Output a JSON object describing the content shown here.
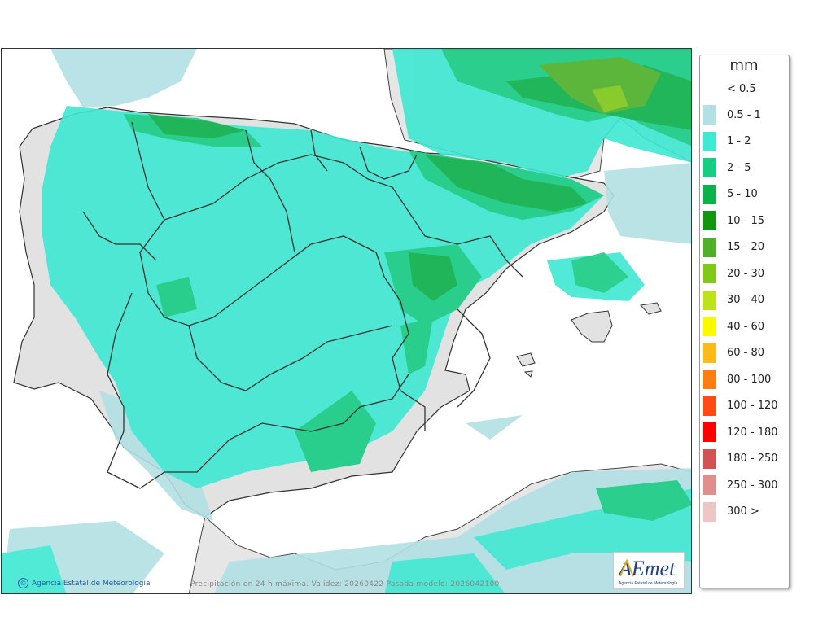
{
  "legend": {
    "unit": "mm",
    "below_min_label": "< 0.5",
    "classes": [
      {
        "label": "0.5 - 1",
        "color": "#b3e0e4"
      },
      {
        "label": "1 - 2",
        "color": "#3ee8d2"
      },
      {
        "label": "2 - 5",
        "color": "#17cc83"
      },
      {
        "label": "5 - 10",
        "color": "#0cb14b"
      },
      {
        "label": "10 - 15",
        "color": "#129610"
      },
      {
        "label": "15 - 20",
        "color": "#4fb12a"
      },
      {
        "label": "20 - 30",
        "color": "#80c81a"
      },
      {
        "label": "30 - 40",
        "color": "#bde21a"
      },
      {
        "label": "40 - 60",
        "color": "#fbf800"
      },
      {
        "label": "60 - 80",
        "color": "#fbba18"
      },
      {
        "label": "80 - 100",
        "color": "#fd7d13"
      },
      {
        "label": "100 - 120",
        "color": "#fe4a13"
      },
      {
        "label": "120 - 180",
        "color": "#fe0000"
      },
      {
        "label": "180 - 250",
        "color": "#d05454"
      },
      {
        "label": "250 - 300",
        "color": "#e08e8e"
      },
      {
        "label": "300 >",
        "color": "#eec6c6"
      }
    ]
  },
  "map": {
    "credit": "Agencia Estatal de Meteorología",
    "caption": "Precipitación en 24 h máxima. Validez: 20260422 Pasada modelo: 2026042100",
    "logo_text": "AEmet",
    "logo_subtext": "Agencia Estatal de Meteorología",
    "sea_color": "#ffffff",
    "land_color": "#e2e2e2"
  }
}
